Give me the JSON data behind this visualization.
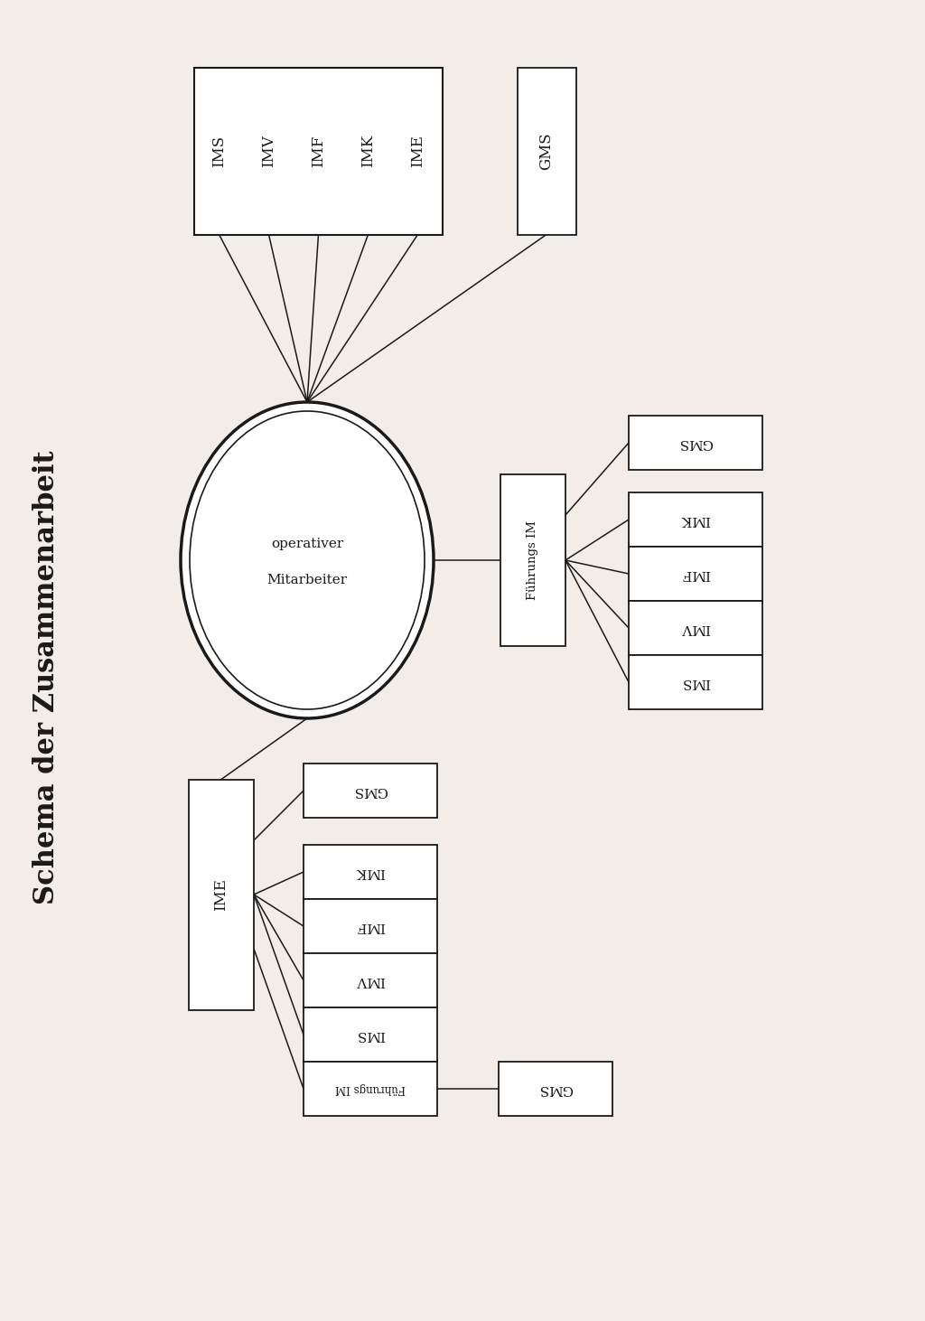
{
  "bg_color": "#f2ede8",
  "title_text": "Schema der Zusammenarbeit",
  "top_boxes": [
    "IMS",
    "IMV",
    "IMF",
    "IMK",
    "IME",
    "GMS"
  ],
  "circle_line1": "operativer",
  "circle_line2": "Mitarbeiter",
  "fuehrungs_label": "Führungs IM",
  "fuehrungs_right_gms": "GMS",
  "fuehrungs_right_stack": [
    "IMK",
    "IMF",
    "IMV",
    "IMS"
  ],
  "ime_label": "IME",
  "ime_right_gms": "GMS",
  "ime_right_stack": [
    "IMK",
    "IMF",
    "IMV",
    "IMS"
  ],
  "fuehrungs_ime_label": "Führungs IM",
  "fuehrungs_ime_gms": "GMS",
  "line_color": "#1a1a1a",
  "box_edge_color": "#1a1a1a",
  "box_fill": "#ffffff",
  "text_color": "#1a1a1a"
}
